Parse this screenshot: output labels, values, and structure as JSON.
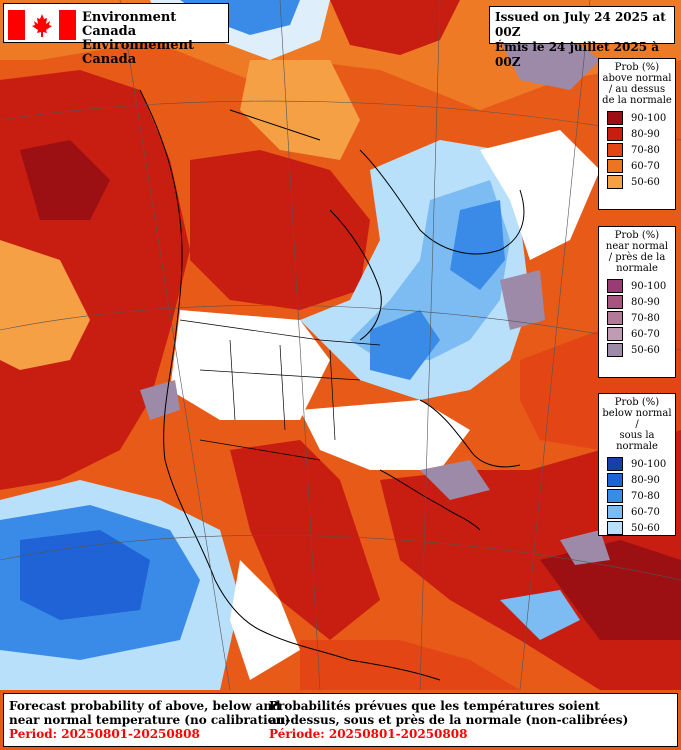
{
  "header": {
    "agency_en": "Environment Canada",
    "agency_fr": "Environnement Canada",
    "issued_en": "Issued on July 24 2025 at 00Z",
    "issued_fr": "Émis le 24 juillet 2025 à 00Z"
  },
  "legends": [
    {
      "title": "Prob (%) above normal / au dessus de la normale",
      "title_lines": [
        "Prob  (%)",
        "above normal",
        "/ au dessus",
        "de la normale"
      ],
      "items": [
        {
          "label": "90-100",
          "color": "#9c0f12"
        },
        {
          "label": "80-90",
          "color": "#c81d11"
        },
        {
          "label": "70-80",
          "color": "#e34614"
        },
        {
          "label": "60-70",
          "color": "#ee7520"
        },
        {
          "label": "50-60",
          "color": "#f5a044"
        }
      ]
    },
    {
      "title": "Prob (%) near normal / près de la normale",
      "title_lines": [
        "Prob  (%)",
        "near normal",
        "/ près de la",
        "normale"
      ],
      "items": [
        {
          "label": "90-100",
          "color": "#9a3b74"
        },
        {
          "label": "80-90",
          "color": "#a5557e"
        },
        {
          "label": "70-80",
          "color": "#b07a98"
        },
        {
          "label": "60-70",
          "color": "#c09bb4"
        },
        {
          "label": "50-60",
          "color": "#9c8aa8"
        }
      ]
    },
    {
      "title": "Prob (%) below normal / sous la normale",
      "title_lines": [
        "Prob  (%)",
        "below normal /",
        "sous la normale"
      ],
      "items": [
        {
          "label": "90-100",
          "color": "#1640a8"
        },
        {
          "label": "80-90",
          "color": "#1f63d6"
        },
        {
          "label": "70-80",
          "color": "#3a8be8"
        },
        {
          "label": "60-70",
          "color": "#7cbcf2"
        },
        {
          "label": "50-60",
          "color": "#b9e0fb"
        }
      ]
    }
  ],
  "footer": {
    "en_line1": "Forecast probability of above, below and",
    "en_line2": "near normal temperature (no calibration)",
    "en_period": "Period: 20250801-20250808",
    "fr_line1": "Probabilités prévues que les températures soient",
    "fr_line2": "au-dessus, sous et près de la normale (non-calibrées)",
    "fr_period": "Période: 20250801-20250808"
  },
  "map": {
    "colors": {
      "above": "#e34614",
      "above_strong": "#c81d11",
      "above_light": "#f5a044",
      "below": "#3a8be8",
      "below_light": "#b9e0fb",
      "below_strong": "#1f63d6",
      "near": "#9c8aa8",
      "ocean_white": "#ffffff"
    }
  }
}
